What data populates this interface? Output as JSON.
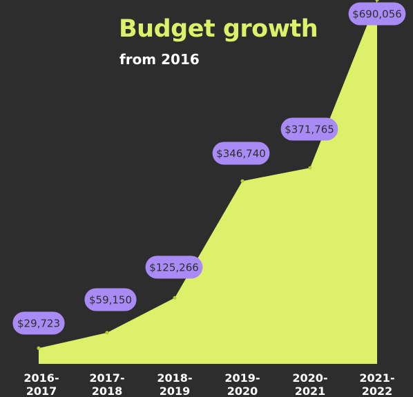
{
  "chart_data": {
    "type": "area",
    "title": "Budget growth",
    "subtitle": "from 2016",
    "xlabel": "",
    "ylabel": "",
    "categories": [
      [
        "2016-",
        "2017"
      ],
      [
        "2017-",
        "2018"
      ],
      [
        "2018-",
        "2019"
      ],
      [
        "2019-",
        "2020"
      ],
      [
        "2020-",
        "2021"
      ],
      [
        "2021-",
        "2022"
      ]
    ],
    "values": [
      29723,
      59150,
      125266,
      346740,
      371765,
      690056
    ],
    "data_labels": [
      "$29,723",
      "$59,150",
      "$125,266",
      "$346,740",
      "$371,765",
      "$690,056"
    ],
    "ylim": [
      0,
      690056
    ],
    "grid": false,
    "legend": "none",
    "colors": {
      "background": "#2d2d2d",
      "area": "#dcf06a",
      "title": "#dcf06a",
      "subtitle": "#ffffff",
      "label_bg": "#a98bf5",
      "label_text": "#2d2d2d",
      "tick_text": "#ffffff"
    }
  }
}
